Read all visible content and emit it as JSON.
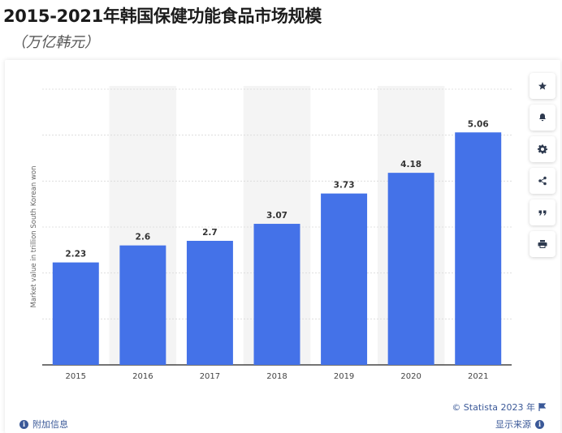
{
  "header": {
    "title": "2015-2021年韩国保健功能食品市场规模",
    "subtitle": "（万亿韩元）"
  },
  "chart_data": {
    "type": "bar",
    "categories": [
      "2015",
      "2016",
      "2017",
      "2018",
      "2019",
      "2020",
      "2021"
    ],
    "values": [
      2.23,
      2.6,
      2.7,
      3.07,
      3.73,
      4.18,
      5.06
    ],
    "value_labels": [
      "2.23",
      "2.6",
      "2.7",
      "3.07",
      "3.73",
      "4.18",
      "5.06"
    ],
    "ylabel": "Market value in trillion South Korean won",
    "ylim": [
      0,
      6
    ],
    "gridlines": [
      0,
      1,
      2,
      3,
      4,
      5,
      6
    ],
    "grid": true,
    "bar_color": "#4472e8",
    "alt_band_color": "#f4f4f4"
  },
  "sidebar": {
    "buttons": [
      {
        "name": "star-icon"
      },
      {
        "name": "bell-icon"
      },
      {
        "name": "gear-icon"
      },
      {
        "name": "share-icon"
      },
      {
        "name": "quote-icon"
      },
      {
        "name": "print-icon"
      }
    ]
  },
  "footer": {
    "credit": "© Statista 2023 年",
    "additional_info": "附加信息",
    "show_source": "显示来源"
  }
}
